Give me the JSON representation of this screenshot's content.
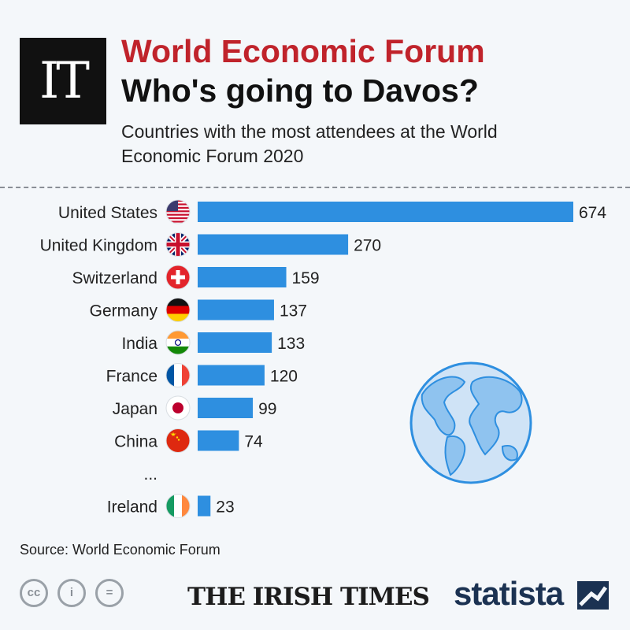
{
  "header": {
    "logo_text": "IT",
    "title": "World Economic Forum",
    "headline": "Who's going to Davos?",
    "subtitle": "Countries with the most attendees at the World Economic Forum 2020"
  },
  "chart_data": {
    "type": "bar",
    "orientation": "horizontal",
    "categories": [
      "United States",
      "United Kingdom",
      "Switzerland",
      "Germany",
      "India",
      "France",
      "Japan",
      "China",
      "...",
      "Ireland"
    ],
    "values": [
      674,
      270,
      159,
      137,
      133,
      120,
      99,
      74,
      null,
      23
    ],
    "bar_color": "#2e8fe0",
    "grid": false,
    "icons": [
      "flag-usa",
      "flag-uk",
      "flag-switzerland",
      "flag-germany",
      "flag-india",
      "flag-france",
      "flag-japan",
      "flag-china",
      "",
      "flag-ireland"
    ],
    "decoration": "globe-icon"
  },
  "footer": {
    "source": "Source: World Economic Forum",
    "license_icons": [
      "cc-icon",
      "attribution-icon",
      "no-derivatives-icon"
    ],
    "license_labels": [
      "cc",
      "i",
      "="
    ],
    "publisher": "THE IRISH TIMES",
    "brand": "statista"
  },
  "colors": {
    "accent_red": "#c0232b",
    "bar": "#2e8fe0",
    "brand_navy": "#1b3252",
    "background": "#f4f7fa"
  }
}
